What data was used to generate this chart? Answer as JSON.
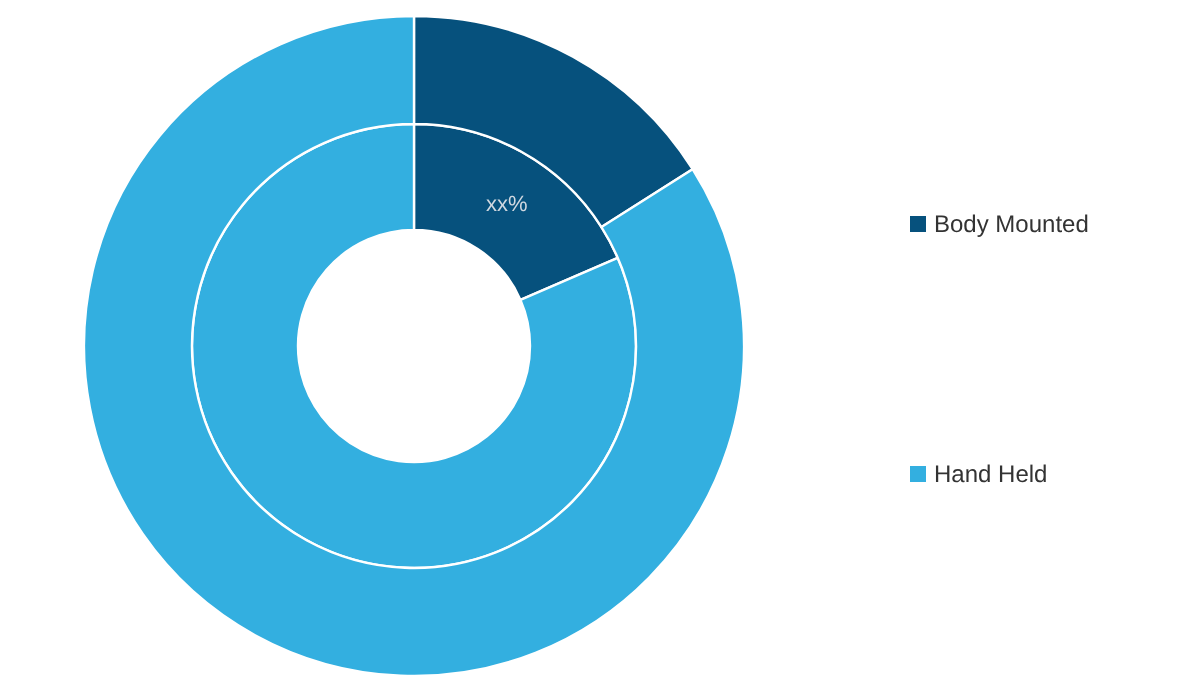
{
  "chart_data": {
    "type": "donut",
    "categories": [
      "Body Mounted",
      "Hand Held"
    ],
    "colors": [
      "#06517d",
      "#33afe0"
    ],
    "series": [
      {
        "values": [
          18.5,
          81.5
        ]
      },
      {
        "values": [
          16,
          84
        ]
      }
    ],
    "annotations": [
      "xx%"
    ],
    "legend": "right"
  }
}
